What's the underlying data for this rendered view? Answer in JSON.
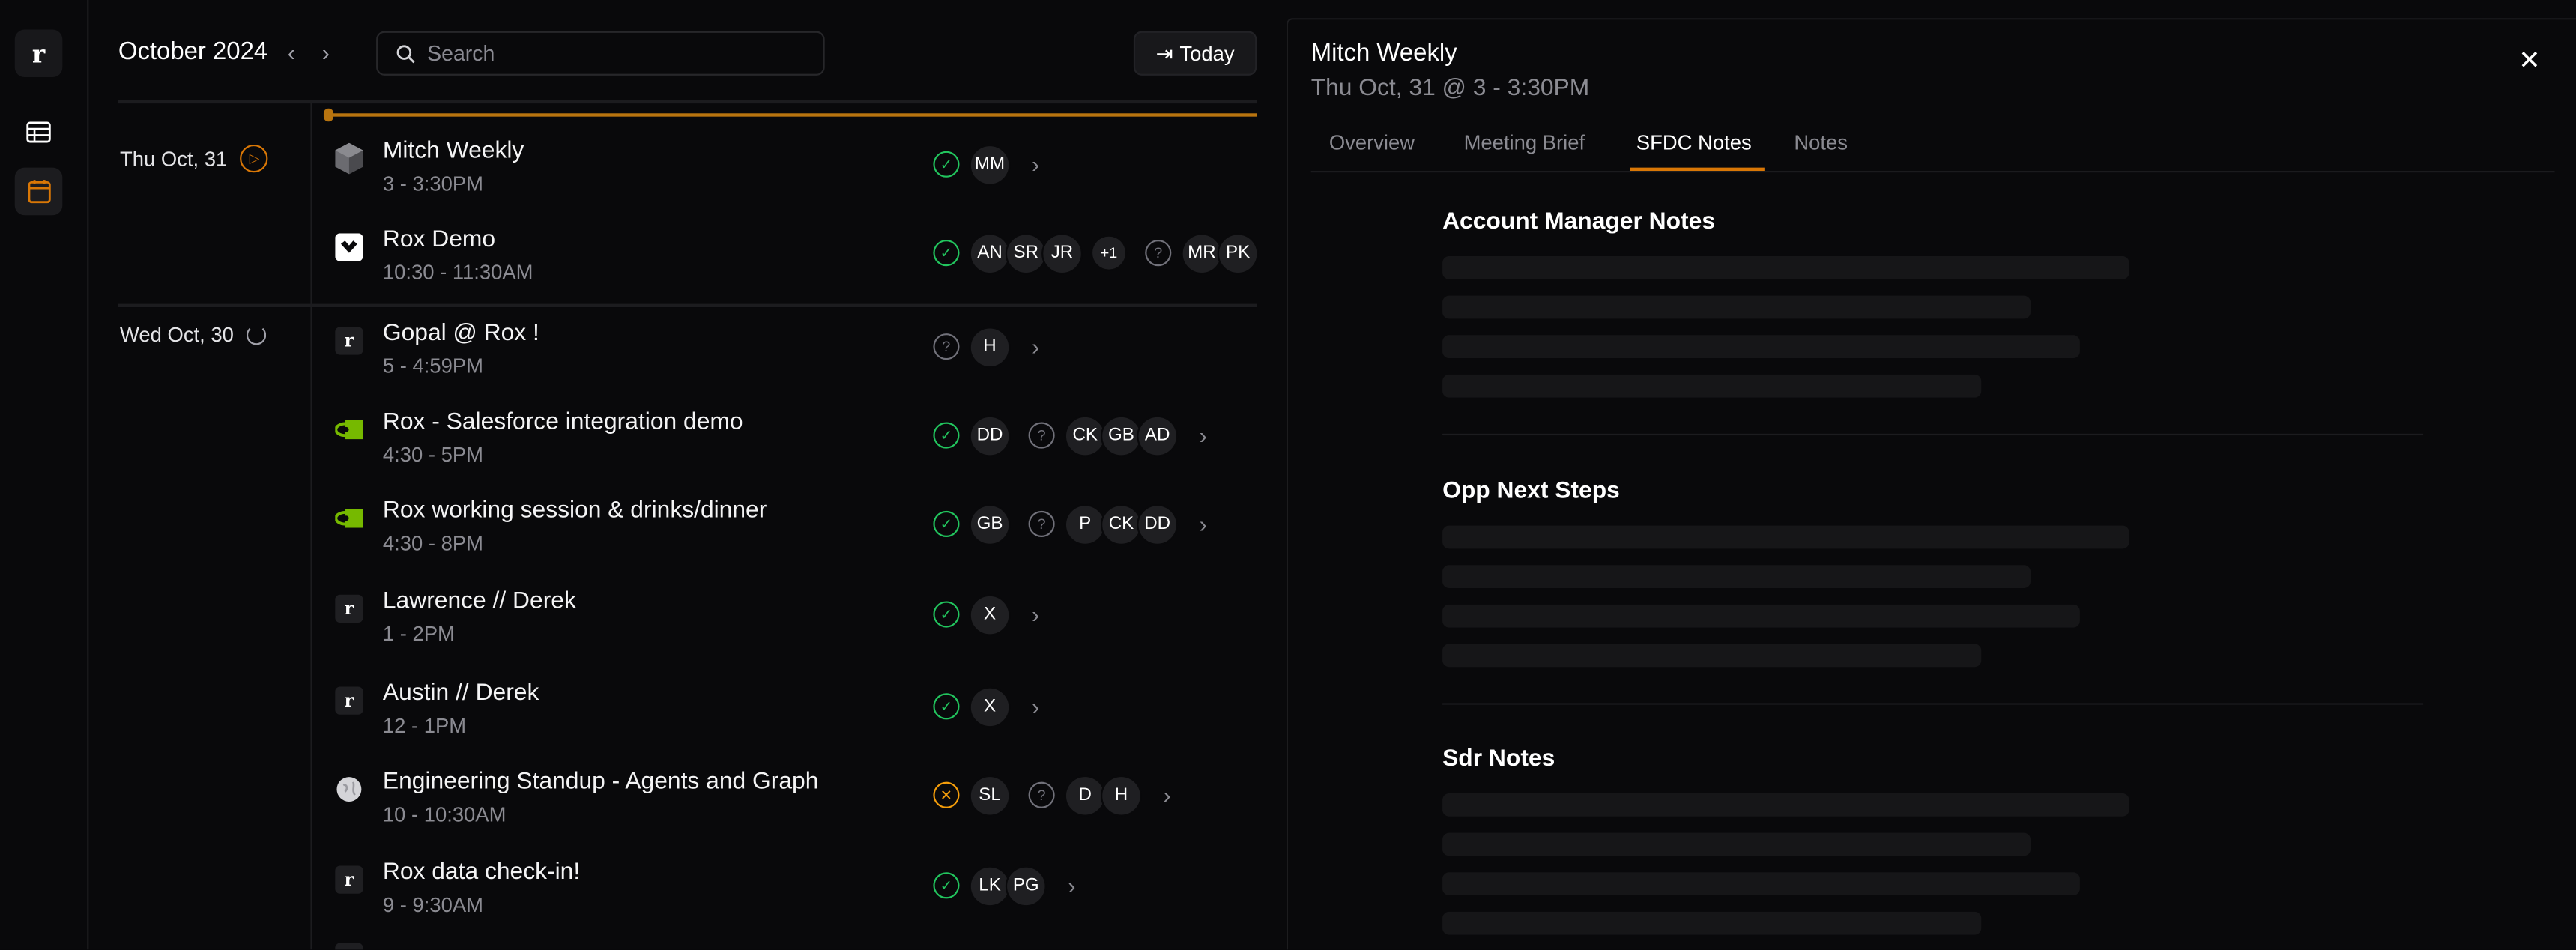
{
  "app": {
    "logo": "r",
    "accent": "#d97706"
  },
  "header": {
    "month": "October 2024",
    "search_placeholder": "Search",
    "today_label": "Today"
  },
  "days": [
    {
      "label": "Thu Oct, 31",
      "status_icon": "play-circle-icon",
      "events": [
        {
          "title": "Mitch Weekly",
          "time": "3 - 3:30PM",
          "icon": "cube-icon",
          "groups": [
            {
              "status": "accepted",
              "avatars": [
                "MM"
              ]
            }
          ],
          "chevron": true
        },
        {
          "title": "Rox Demo",
          "time": "10:30 - 11:30AM",
          "icon": "check-logo-icon",
          "groups": [
            {
              "status": "accepted",
              "avatars": [
                "AN",
                "SR",
                "JR"
              ],
              "more": "+1"
            },
            {
              "status": "unknown",
              "avatars": [
                "MR",
                "PK"
              ]
            }
          ],
          "chevron": false
        }
      ]
    },
    {
      "label": "Wed Oct, 30",
      "status_icon": "loading-circle-icon",
      "events": [
        {
          "title": "Gopal @ Rox !",
          "time": "5 - 4:59PM",
          "icon": "rox-logo-icon",
          "groups": [
            {
              "status": "unknown",
              "avatars": [
                "H"
              ]
            }
          ],
          "chevron": true
        },
        {
          "title": "Rox - Salesforce integration demo",
          "time": "4:30 - 5PM",
          "icon": "nvidia-logo-icon",
          "groups": [
            {
              "status": "accepted",
              "avatars": [
                "DD"
              ]
            },
            {
              "status": "unknown",
              "avatars": [
                "CK",
                "GB",
                "AD"
              ]
            }
          ],
          "chevron": true
        },
        {
          "title": "Rox working session & drinks/dinner",
          "time": "4:30 - 8PM",
          "icon": "nvidia-logo-icon",
          "groups": [
            {
              "status": "accepted",
              "avatars": [
                "GB"
              ]
            },
            {
              "status": "unknown",
              "avatars": [
                "P",
                "CK",
                "DD"
              ]
            }
          ],
          "chevron": true
        },
        {
          "title": "Lawrence // Derek",
          "time": "1 - 2PM",
          "icon": "rox-logo-icon",
          "groups": [
            {
              "status": "accepted",
              "avatars": [
                "X"
              ]
            }
          ],
          "chevron": true
        },
        {
          "title": "Austin // Derek",
          "time": "12 - 1PM",
          "icon": "rox-logo-icon",
          "groups": [
            {
              "status": "accepted",
              "avatars": [
                "X"
              ]
            }
          ],
          "chevron": true
        },
        {
          "title": "Engineering Standup - Agents and Graph",
          "time": "10 - 10:30AM",
          "icon": "globe-icon",
          "groups": [
            {
              "status": "declined",
              "avatars": [
                "SL"
              ]
            },
            {
              "status": "unknown",
              "avatars": [
                "D",
                "H"
              ]
            }
          ],
          "chevron": true
        },
        {
          "title": "Rox data check-in!",
          "time": "9 - 9:30AM",
          "icon": "rox-logo-icon",
          "groups": [
            {
              "status": "accepted",
              "avatars": [
                "LK",
                "PG"
              ]
            }
          ],
          "chevron": true
        }
      ]
    }
  ],
  "status_colors": {
    "accepted": "#22c55e",
    "unknown": "#71717a",
    "declined": "#f59e0b"
  },
  "panel": {
    "title": "Mitch Weekly",
    "subtitle": "Thu Oct, 31 @ 3 - 3:30PM",
    "tabs": [
      "Overview",
      "Meeting Brief",
      "SFDC Notes",
      "Notes"
    ],
    "active_tab": "SFDC Notes",
    "sections": [
      {
        "heading": "Account Manager Notes"
      },
      {
        "heading": "Opp Next Steps"
      },
      {
        "heading": "Sdr Notes"
      }
    ]
  }
}
